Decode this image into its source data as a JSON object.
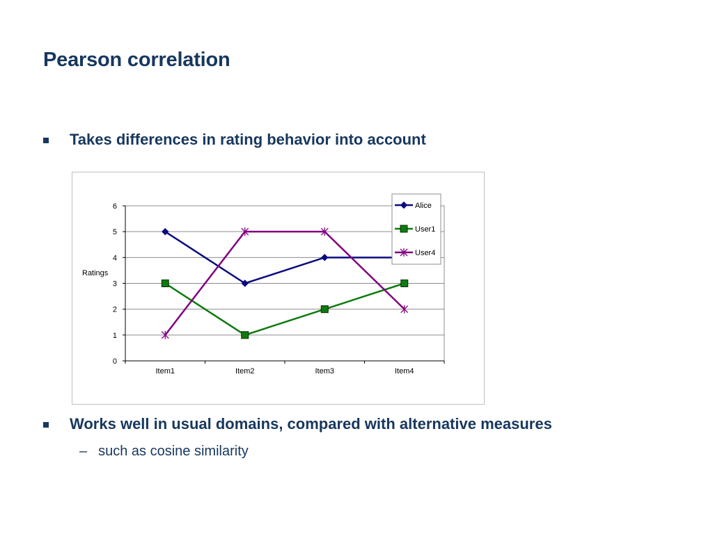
{
  "slide": {
    "title": "Pearson correlation",
    "bullets": [
      {
        "text": "Takes differences in rating behavior into account"
      },
      {
        "text": "Works well in usual domains, compared with alternative measures"
      }
    ],
    "sub_bullets": [
      {
        "dash": "–",
        "text": "such as cosine similarity"
      }
    ],
    "colors": {
      "text": "#17375e",
      "frame": "#bfbfbf"
    }
  },
  "chart_data": {
    "type": "line",
    "categories": [
      "Item1",
      "Item2",
      "Item3",
      "Item4"
    ],
    "series": [
      {
        "name": "Alice",
        "values": [
          5,
          3,
          4,
          4
        ],
        "color": "#0a0a80",
        "marker": "diamond"
      },
      {
        "name": "User1",
        "values": [
          3,
          1,
          2,
          3
        ],
        "color": "#0f7a0f",
        "marker": "square"
      },
      {
        "name": "User4",
        "values": [
          1,
          5,
          5,
          2
        ],
        "color": "#800080",
        "marker": "x"
      }
    ],
    "title": "",
    "xlabel": "",
    "ylabel": "Ratings",
    "ylim": [
      0,
      6
    ],
    "yticks": [
      0,
      1,
      2,
      3,
      4,
      5,
      6
    ],
    "grid": true,
    "legend": "top-right"
  }
}
